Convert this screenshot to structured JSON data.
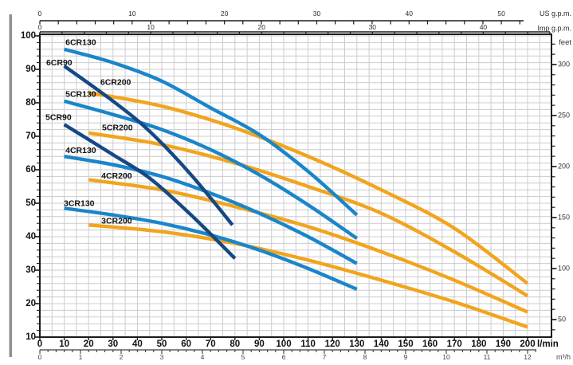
{
  "page": {
    "left_bar_color": "#8f8f8f"
  },
  "colors": {
    "cr130_light_blue": "#1a86c9",
    "cr90_dark_blue": "#154884",
    "cr200_orange": "#f2a41c",
    "grid": "#cccccf",
    "axis": "#1b1b1b",
    "primary_text": "#111111",
    "secondary_text": "#454545"
  },
  "chart_data": {
    "type": "line",
    "title": "",
    "axes": {
      "top_us_gpm": {
        "label": "US g.p.m.",
        "tick_labels": [
          0,
          10,
          20,
          30,
          40,
          50
        ],
        "minor_step": 2,
        "minor_max": 52,
        "lpm_per_unit": 3.785
      },
      "top_imp_gpm": {
        "label": "Imp g.p.m.",
        "tick_labels": [
          0,
          10,
          20,
          30,
          40
        ],
        "minor_step": 2,
        "minor_max": 46,
        "lpm_per_unit": 4.546
      },
      "left_head": {
        "label": "",
        "tick_labels": [
          100,
          90,
          80,
          70,
          60,
          50,
          40,
          30,
          20,
          10
        ],
        "minor_step": 2,
        "range": [
          10,
          100
        ]
      },
      "right_feet": {
        "label": "feet",
        "tick_labels": [
          300,
          250,
          200,
          150,
          100,
          50
        ],
        "minor_step": 10,
        "minor_min": 40,
        "minor_max": 320,
        "m_per_unit": 0.3048
      },
      "bottom_lpm": {
        "unit": "l/min",
        "tick_labels": [
          0,
          10,
          20,
          30,
          40,
          50,
          60,
          70,
          80,
          90,
          100,
          110,
          120,
          130,
          140,
          150,
          160,
          170,
          180,
          190,
          200
        ],
        "range": [
          0,
          210
        ]
      },
      "bottom_m3h": {
        "label": "m³/h",
        "tick_labels": [
          0,
          1,
          2,
          3,
          4,
          5,
          6,
          7,
          8,
          9,
          10,
          11,
          12
        ],
        "minor_step": 0.2,
        "minor_max": 12.2,
        "lpm_per_unit": 16.6667
      }
    },
    "series": [
      {
        "name": "3CR200",
        "color_key": "cr200_orange",
        "points": [
          [
            20,
            43.5
          ],
          [
            50,
            41.5
          ],
          [
            80,
            38
          ],
          [
            110,
            33
          ],
          [
            140,
            27
          ],
          [
            170,
            20.5
          ],
          [
            200,
            13
          ]
        ],
        "label_at": [
          25.2,
          44.6
        ]
      },
      {
        "name": "4CR200",
        "color_key": "cr200_orange",
        "points": [
          [
            20,
            57
          ],
          [
            50,
            54
          ],
          [
            80,
            49
          ],
          [
            110,
            43
          ],
          [
            140,
            35.5
          ],
          [
            170,
            27
          ],
          [
            200,
            17.5
          ]
        ],
        "label_at": [
          25.2,
          58.1
        ]
      },
      {
        "name": "5CR200",
        "color_key": "cr200_orange",
        "points": [
          [
            20,
            71
          ],
          [
            50,
            67.5
          ],
          [
            80,
            62
          ],
          [
            110,
            55
          ],
          [
            140,
            47
          ],
          [
            170,
            35.5
          ],
          [
            200,
            22.3
          ]
        ],
        "label_at": [
          25.5,
          72.4
        ]
      },
      {
        "name": "6CR200",
        "color_key": "cr200_orange",
        "points": [
          [
            20,
            83
          ],
          [
            50,
            79
          ],
          [
            80,
            72.5
          ],
          [
            110,
            64
          ],
          [
            140,
            54
          ],
          [
            170,
            42.5
          ],
          [
            200,
            26
          ]
        ],
        "label_at": [
          24.8,
          86.0
        ]
      },
      {
        "name": "3CR130",
        "color_key": "cr130_light_blue",
        "points": [
          [
            10,
            48.5
          ],
          [
            30,
            46.5
          ],
          [
            50,
            44
          ],
          [
            70,
            40.5
          ],
          [
            90,
            36
          ],
          [
            110,
            30.5
          ],
          [
            130,
            24.3
          ]
        ],
        "label_at": [
          9.8,
          49.8
        ]
      },
      {
        "name": "4CR130",
        "color_key": "cr130_light_blue",
        "points": [
          [
            10,
            64
          ],
          [
            30,
            61.5
          ],
          [
            50,
            58
          ],
          [
            70,
            53
          ],
          [
            90,
            47
          ],
          [
            110,
            40
          ],
          [
            130,
            32
          ]
        ],
        "label_at": [
          10.5,
          65.7
        ]
      },
      {
        "name": "5CR130",
        "color_key": "cr130_light_blue",
        "points": [
          [
            10,
            80.5
          ],
          [
            30,
            76.5
          ],
          [
            50,
            72
          ],
          [
            70,
            66
          ],
          [
            90,
            58.5
          ],
          [
            110,
            49.5
          ],
          [
            130,
            39.5
          ]
        ],
        "label_at": [
          10.5,
          82.4
        ]
      },
      {
        "name": "6CR130",
        "color_key": "cr130_light_blue",
        "points": [
          [
            10,
            96
          ],
          [
            30,
            92
          ],
          [
            50,
            86.5
          ],
          [
            70,
            78.5
          ],
          [
            90,
            70.5
          ],
          [
            110,
            59.5
          ],
          [
            130,
            46.5
          ]
        ],
        "label_at": [
          10.5,
          97.9
        ]
      },
      {
        "name": "5CR90",
        "color_key": "cr90_dark_blue",
        "points": [
          [
            10,
            73.5
          ],
          [
            30,
            64.5
          ],
          [
            45,
            57.5
          ],
          [
            62,
            46.5
          ],
          [
            80,
            33.5
          ]
        ],
        "label_at": [
          2.3,
          75.5
        ]
      },
      {
        "name": "6CR90",
        "color_key": "cr90_dark_blue",
        "points": [
          [
            10,
            91
          ],
          [
            30,
            80.5
          ],
          [
            45,
            71.5
          ],
          [
            62,
            58.5
          ],
          [
            79,
            43.5
          ]
        ],
        "label_at": [
          2.6,
          91.9
        ]
      }
    ]
  }
}
